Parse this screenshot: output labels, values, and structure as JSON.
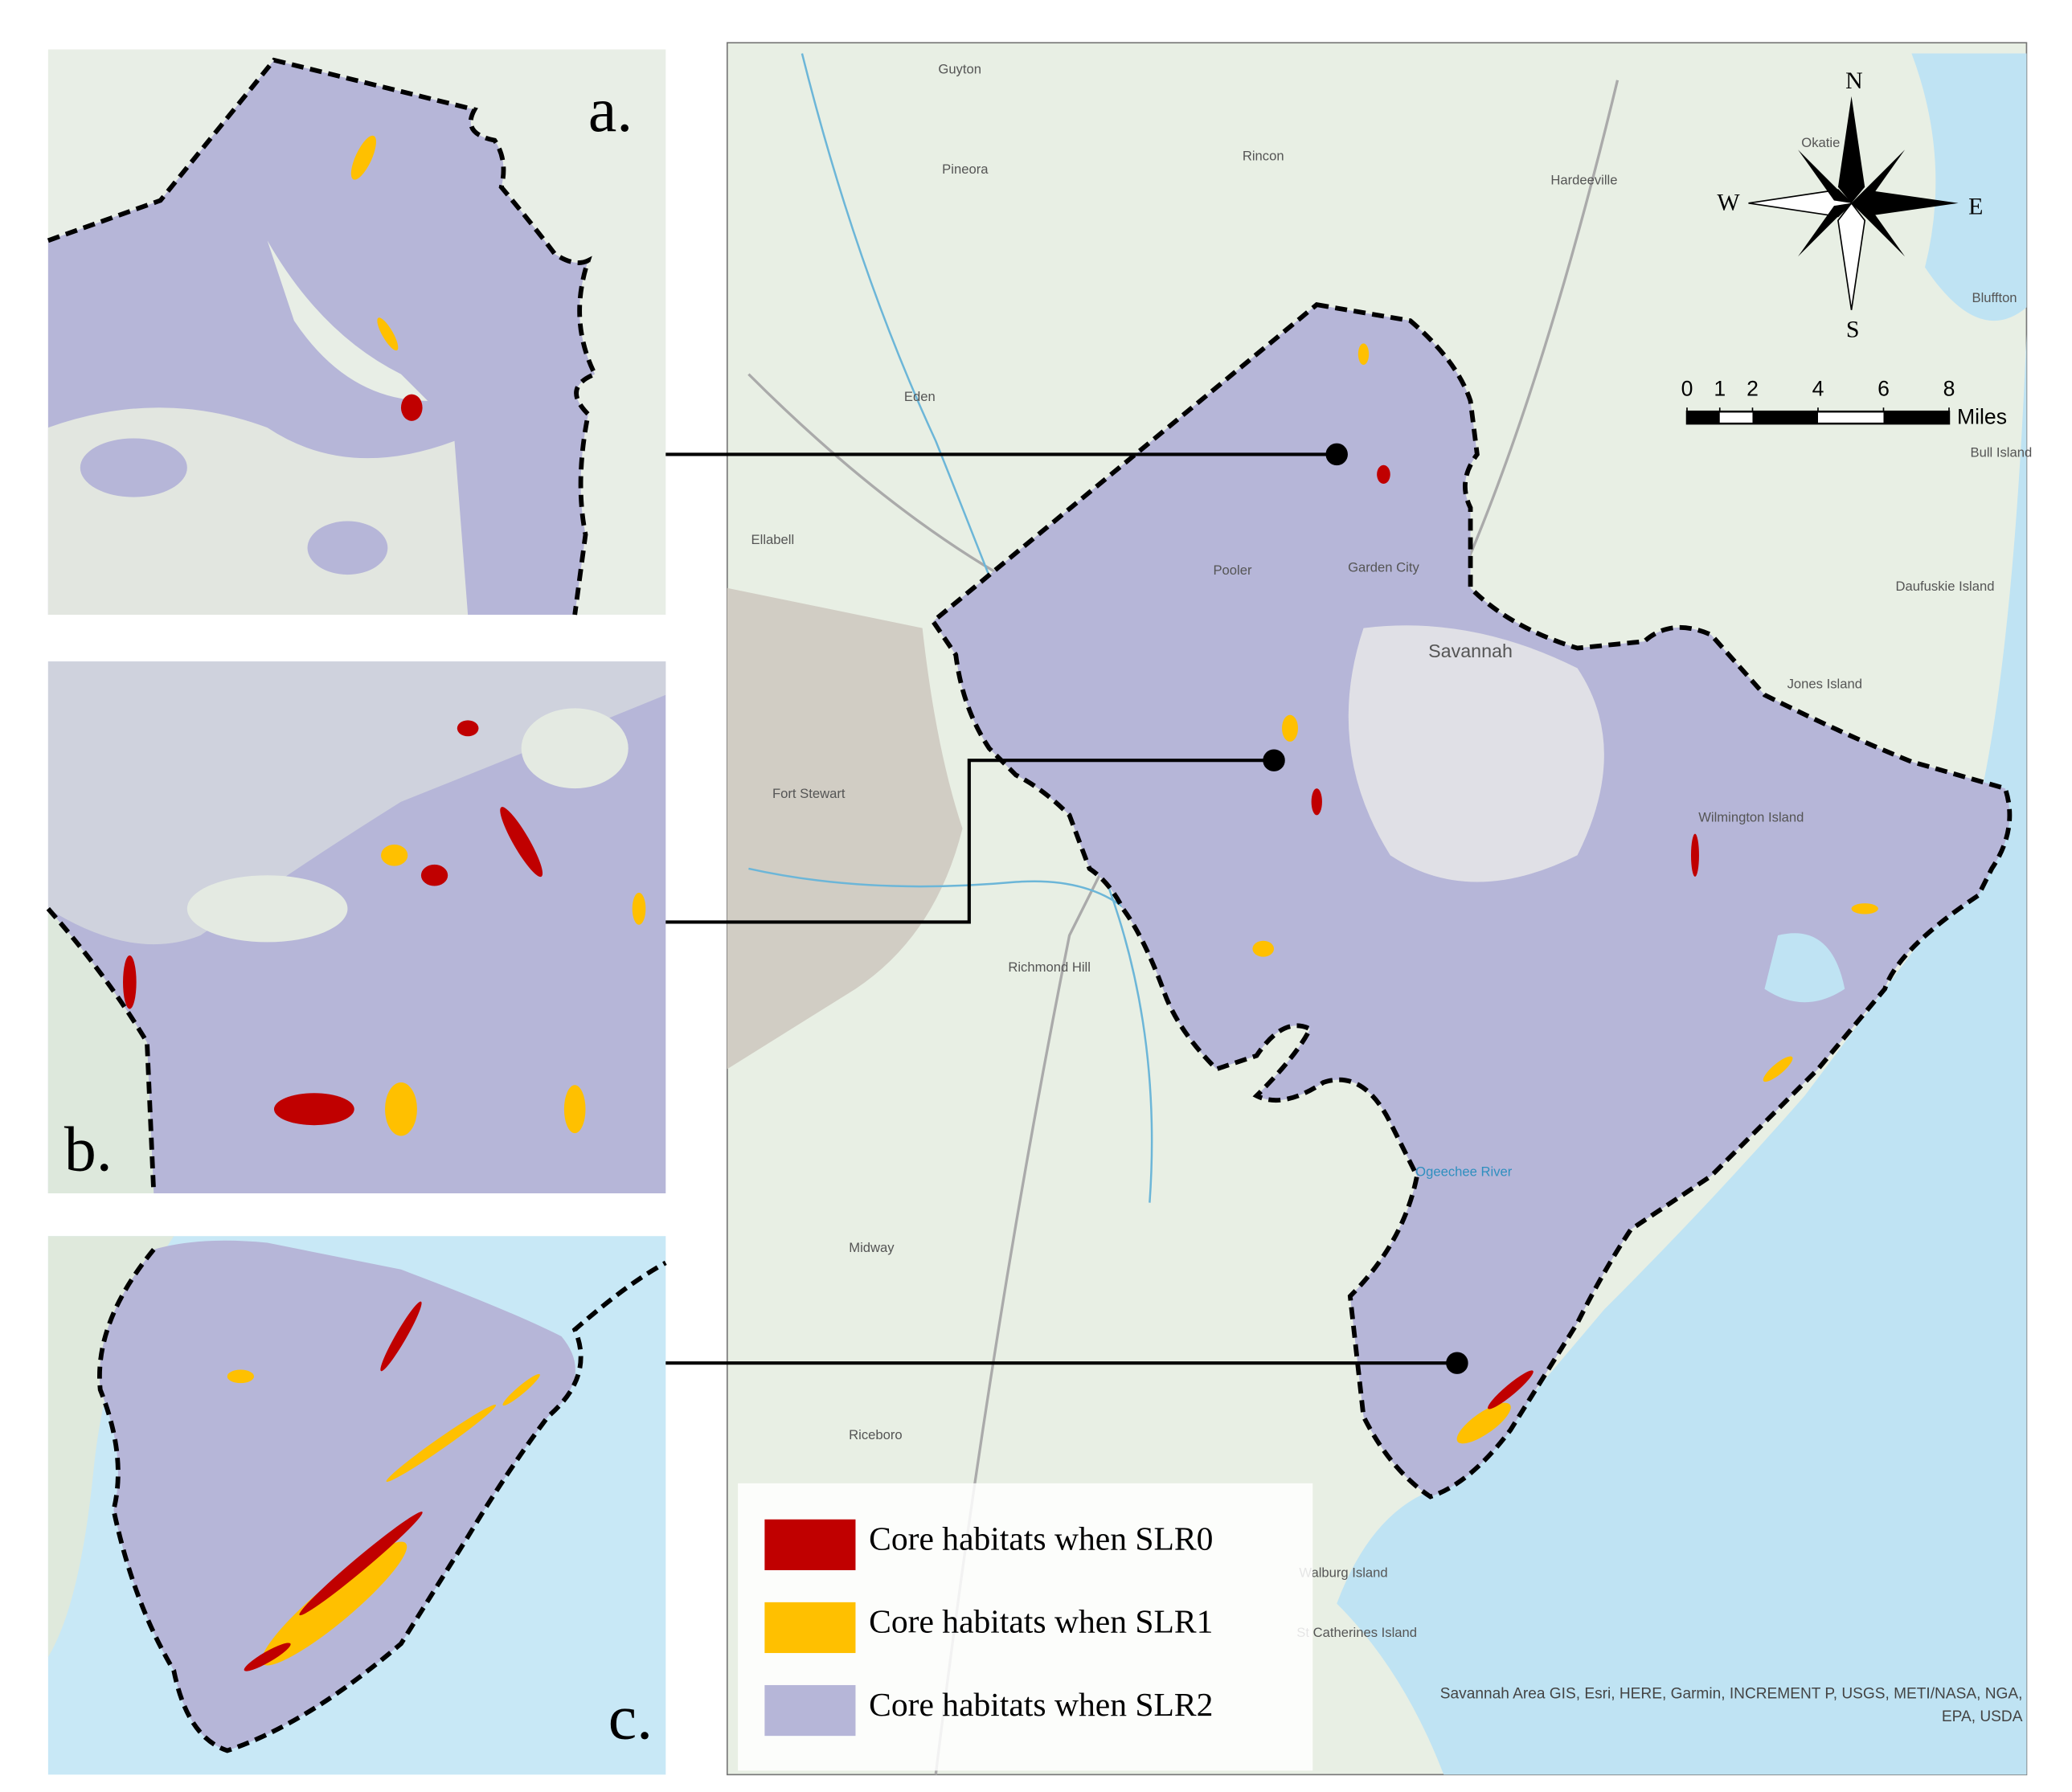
{
  "panels": [
    {
      "label": "a."
    },
    {
      "label": "b."
    },
    {
      "label": "c."
    }
  ],
  "legend": [
    {
      "label": "Core habitats when SLR0",
      "color": "#c00000"
    },
    {
      "label": "Core habitats when SLR1",
      "color": "#ffc000"
    },
    {
      "label": "Core habitats when SLR2",
      "color": "#b6b6d8"
    }
  ],
  "compass": {
    "north": "N",
    "south": "S",
    "east": "E",
    "west": "W"
  },
  "scale_bar": {
    "ticks": [
      0,
      1,
      2,
      4,
      6,
      8
    ],
    "unit": "Miles"
  },
  "places": [
    "Guyton",
    "Pineora",
    "Rincon",
    "Hardeeville",
    "Okatie",
    "Bluffton",
    "Bull Island",
    "Eden",
    "Ellabell",
    "Pooler",
    "Garden City",
    "Savannah",
    "Fort Stewart",
    "Richmond Hill",
    "Midway",
    "Riceboro",
    "Wilmington Island",
    "Walburg Island",
    "St Catherines Island",
    "Ogeechee River",
    "Daufuskie Island",
    "Jones Island"
  ],
  "attribution": [
    "Savannah Area GIS, Esri, HERE, Garmin, INCREMENT P, USGS, METI/NASA, NGA,",
    "EPA, USDA"
  ]
}
